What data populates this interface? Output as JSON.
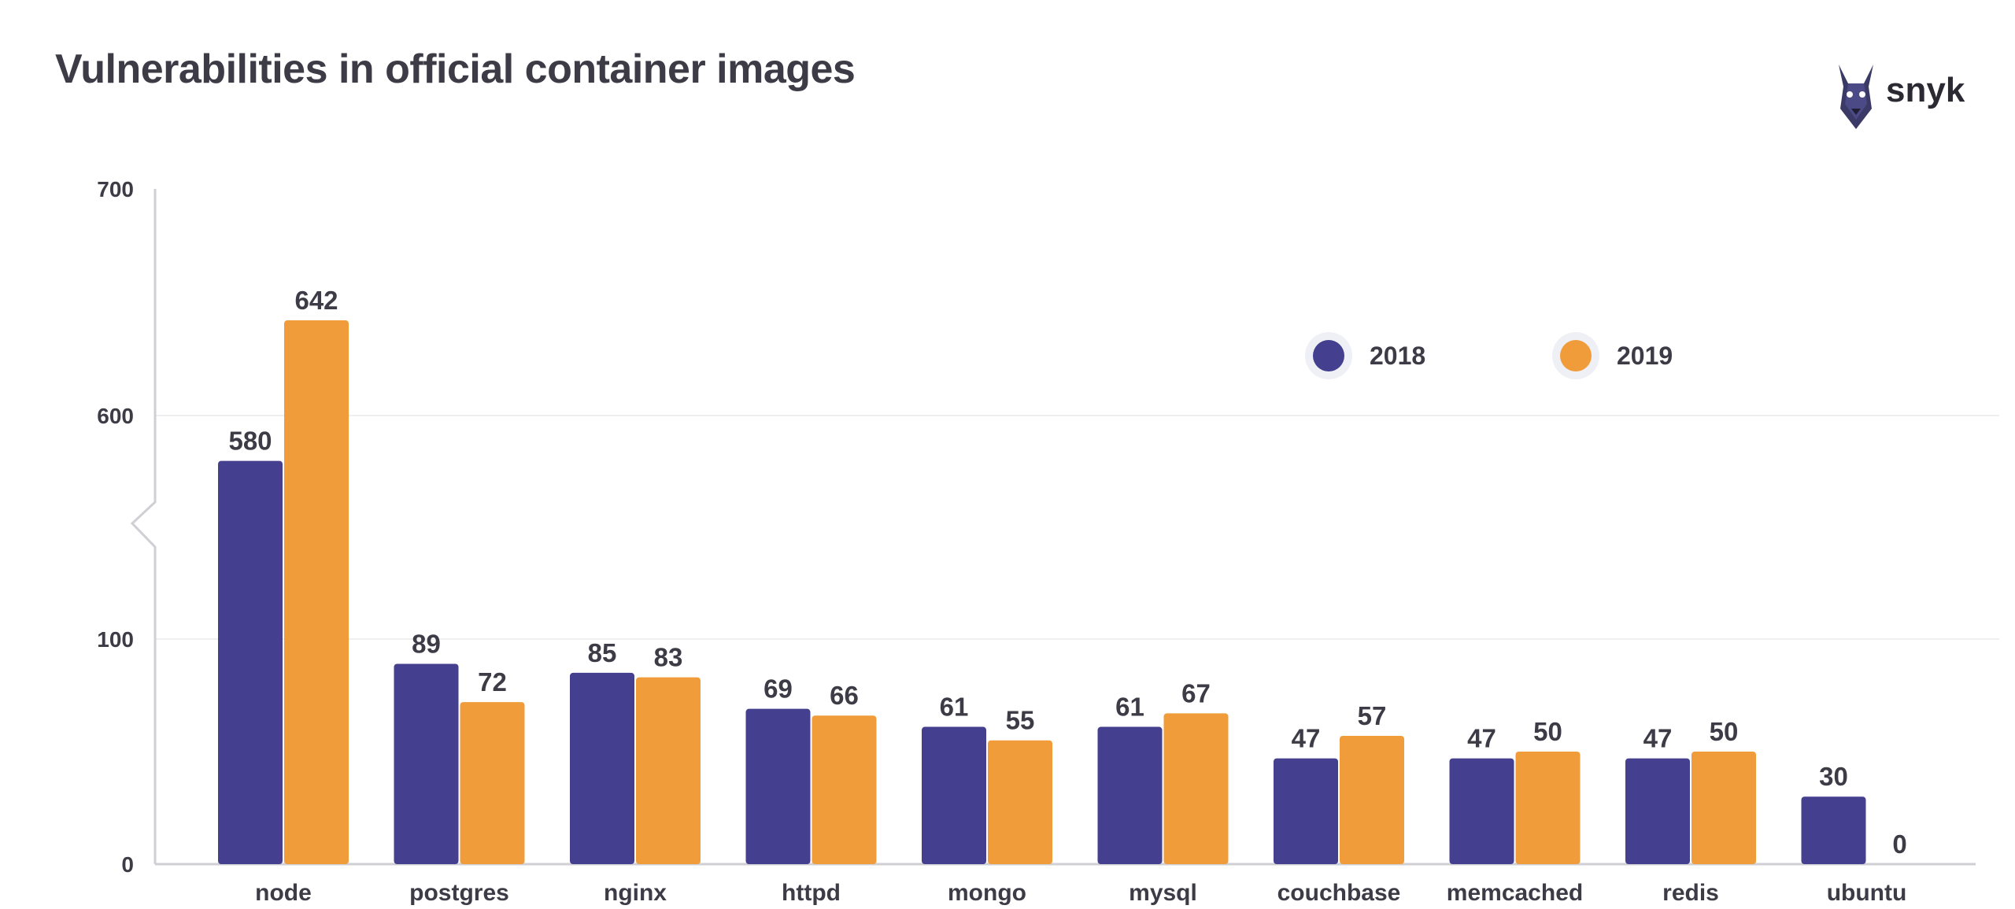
{
  "title": "Vulnerabilities in official container images",
  "brand": {
    "name": "snyk",
    "icon": "doberman-logo-icon"
  },
  "colors": {
    "y2018": "#443f8f",
    "y2019": "#f19c3a",
    "text": "#3d3b46",
    "axis": "#cfcfd4",
    "grid": "#efeff2"
  },
  "chart_data": {
    "type": "bar",
    "title": "Vulnerabilities in official container images",
    "categories": [
      "node",
      "postgres",
      "nginx",
      "httpd",
      "mongo",
      "mysql",
      "couchbase",
      "memcached",
      "redis",
      "ubuntu"
    ],
    "series": [
      {
        "name": "2018",
        "values": [
          580,
          89,
          85,
          69,
          61,
          61,
          47,
          47,
          47,
          30
        ]
      },
      {
        "name": "2019",
        "values": [
          642,
          72,
          83,
          66,
          55,
          67,
          57,
          50,
          50,
          0
        ]
      }
    ],
    "y_ticks": [
      "0",
      "100",
      "600",
      "700"
    ],
    "axis_break": "between 100 and 600",
    "legend": {
      "position": "top-right",
      "entries": [
        "2018",
        "2019"
      ]
    },
    "grid": true,
    "xlabel": "",
    "ylabel": ""
  }
}
